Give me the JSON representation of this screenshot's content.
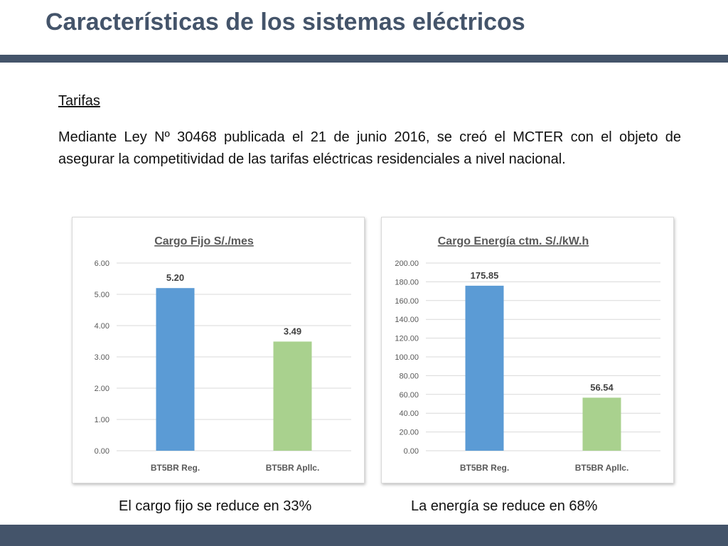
{
  "slide": {
    "title": "Características de los sistemas eléctricos",
    "section_heading": "Tarifas",
    "body": "Mediante Ley Nº 30468 publicada el 21 de junio 2016, se creó el MCTER con el objeto de asegurar la competitividad de las tarifas eléctricas residenciales a nivel nacional.",
    "caption_left": "El cargo fijo se reduce en 33%",
    "caption_right": "La energía se reduce en 68%",
    "colors": {
      "title": "#44546a",
      "rule": "#44546a",
      "bar_reg": "#5b9bd5",
      "bar_aplic": "#a9d18e"
    }
  },
  "chart_data": [
    {
      "type": "bar",
      "title": "Cargo Fijo S/./mes",
      "categories": [
        "BT5BR Reg.",
        "BT5BR Apllc."
      ],
      "values": [
        5.2,
        3.49
      ],
      "value_labels": [
        "5.20",
        "3.49"
      ],
      "bar_colors": [
        "#5b9bd5",
        "#a9d18e"
      ],
      "ylim": [
        0,
        6
      ],
      "yticks": [
        "0.00",
        "1.00",
        "2.00",
        "3.00",
        "4.00",
        "5.00",
        "6.00"
      ],
      "grid": true,
      "xlabel": "",
      "ylabel": ""
    },
    {
      "type": "bar",
      "title": "Cargo Energía ctm. S/./kW.h",
      "categories": [
        "BT5BR Reg.",
        "BT5BR Apllc."
      ],
      "values": [
        175.85,
        56.54
      ],
      "value_labels": [
        "175.85",
        "56.54"
      ],
      "bar_colors": [
        "#5b9bd5",
        "#a9d18e"
      ],
      "ylim": [
        0,
        200
      ],
      "yticks": [
        "0.00",
        "20.00",
        "40.00",
        "60.00",
        "80.00",
        "100.00",
        "120.00",
        "140.00",
        "160.00",
        "180.00",
        "200.00"
      ],
      "grid": true,
      "xlabel": "",
      "ylabel": ""
    }
  ]
}
